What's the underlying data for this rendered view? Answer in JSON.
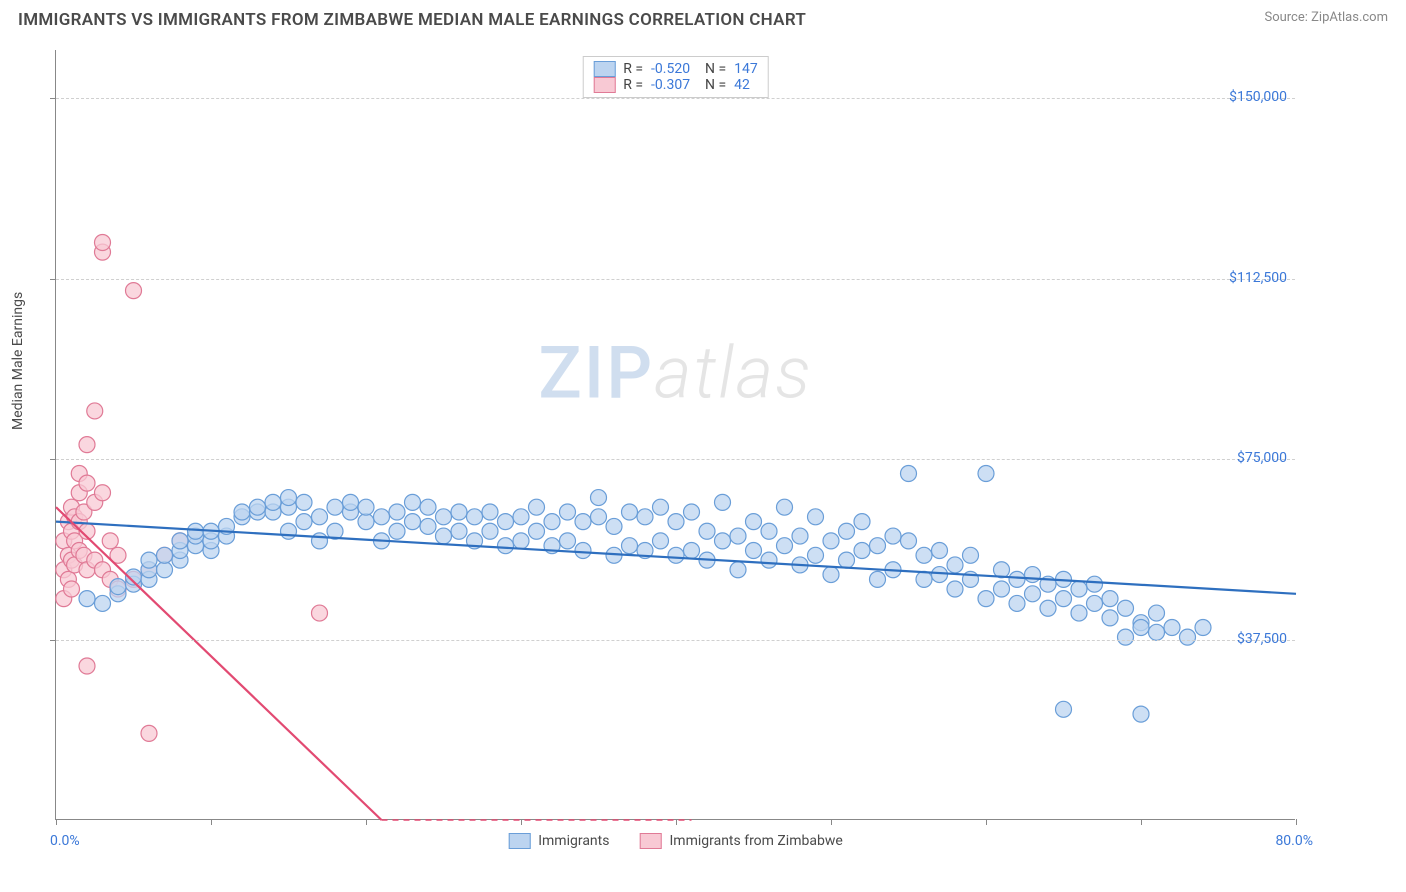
{
  "header": {
    "title": "IMMIGRANTS VS IMMIGRANTS FROM ZIMBABWE MEDIAN MALE EARNINGS CORRELATION CHART",
    "source": "Source: ZipAtlas.com"
  },
  "chart": {
    "type": "scatter",
    "y_label": "Median Male Earnings",
    "x_min": 0.0,
    "x_max": 80.0,
    "y_min": 0,
    "y_max": 160000,
    "x_ticks_pct": [
      0,
      10,
      20,
      30,
      40,
      50,
      60,
      70,
      80
    ],
    "x_tick_labels": {
      "left": "0.0%",
      "right": "80.0%"
    },
    "y_ticks": [
      {
        "v": 37500,
        "label": "$37,500"
      },
      {
        "v": 75000,
        "label": "$75,000"
      },
      {
        "v": 112500,
        "label": "$112,500"
      },
      {
        "v": 150000,
        "label": "$150,000"
      }
    ],
    "grid_color": "#d0d0d0",
    "background": "#ffffff",
    "axis_color": "#888888",
    "label_color": "#3b78d8",
    "marker_radius": 8,
    "marker_stroke_width": 1.2,
    "series": [
      {
        "id": "immigrants",
        "name": "Immigrants",
        "fill": "#bcd4f0",
        "stroke": "#6a9ed8",
        "trend_color": "#2e6fbf",
        "R": "-0.520",
        "N": "147",
        "trend": {
          "x1": 0,
          "y1": 62000,
          "x2": 80,
          "y2": 47000,
          "extrapolate_from": 80
        },
        "points": [
          [
            2,
            46000
          ],
          [
            3,
            45000
          ],
          [
            4,
            47000
          ],
          [
            4,
            48500
          ],
          [
            5,
            49000
          ],
          [
            5,
            50500
          ],
          [
            6,
            50000
          ],
          [
            6,
            52000
          ],
          [
            6,
            54000
          ],
          [
            7,
            52000
          ],
          [
            7,
            55000
          ],
          [
            8,
            54000
          ],
          [
            8,
            56000
          ],
          [
            8,
            58000
          ],
          [
            9,
            57000
          ],
          [
            9,
            59000
          ],
          [
            9,
            60000
          ],
          [
            10,
            56000
          ],
          [
            10,
            58000
          ],
          [
            10,
            60000
          ],
          [
            11,
            59000
          ],
          [
            11,
            61000
          ],
          [
            12,
            63000
          ],
          [
            12,
            64000
          ],
          [
            13,
            64000
          ],
          [
            13,
            65000
          ],
          [
            14,
            64000
          ],
          [
            14,
            66000
          ],
          [
            15,
            60000
          ],
          [
            15,
            65000
          ],
          [
            15,
            67000
          ],
          [
            16,
            62000
          ],
          [
            16,
            66000
          ],
          [
            17,
            58000
          ],
          [
            17,
            63000
          ],
          [
            18,
            60000
          ],
          [
            18,
            65000
          ],
          [
            19,
            64000
          ],
          [
            19,
            66000
          ],
          [
            20,
            62000
          ],
          [
            20,
            65000
          ],
          [
            21,
            58000
          ],
          [
            21,
            63000
          ],
          [
            22,
            60000
          ],
          [
            22,
            64000
          ],
          [
            23,
            62000
          ],
          [
            23,
            66000
          ],
          [
            24,
            61000
          ],
          [
            24,
            65000
          ],
          [
            25,
            59000
          ],
          [
            25,
            63000
          ],
          [
            26,
            60000
          ],
          [
            26,
            64000
          ],
          [
            27,
            58000
          ],
          [
            27,
            63000
          ],
          [
            28,
            60000
          ],
          [
            28,
            64000
          ],
          [
            29,
            57000
          ],
          [
            29,
            62000
          ],
          [
            30,
            58000
          ],
          [
            30,
            63000
          ],
          [
            31,
            60000
          ],
          [
            31,
            65000
          ],
          [
            32,
            57000
          ],
          [
            32,
            62000
          ],
          [
            33,
            58000
          ],
          [
            33,
            64000
          ],
          [
            34,
            56000
          ],
          [
            34,
            62000
          ],
          [
            35,
            63000
          ],
          [
            35,
            67000
          ],
          [
            36,
            55000
          ],
          [
            36,
            61000
          ],
          [
            37,
            57000
          ],
          [
            37,
            64000
          ],
          [
            38,
            56000
          ],
          [
            38,
            63000
          ],
          [
            39,
            58000
          ],
          [
            39,
            65000
          ],
          [
            40,
            55000
          ],
          [
            40,
            62000
          ],
          [
            41,
            56000
          ],
          [
            41,
            64000
          ],
          [
            42,
            54000
          ],
          [
            42,
            60000
          ],
          [
            43,
            58000
          ],
          [
            43,
            66000
          ],
          [
            44,
            52000
          ],
          [
            44,
            59000
          ],
          [
            45,
            56000
          ],
          [
            45,
            62000
          ],
          [
            46,
            54000
          ],
          [
            46,
            60000
          ],
          [
            47,
            57000
          ],
          [
            47,
            65000
          ],
          [
            48,
            53000
          ],
          [
            48,
            59000
          ],
          [
            49,
            55000
          ],
          [
            49,
            63000
          ],
          [
            50,
            51000
          ],
          [
            50,
            58000
          ],
          [
            51,
            54000
          ],
          [
            51,
            60000
          ],
          [
            52,
            56000
          ],
          [
            52,
            62000
          ],
          [
            53,
            50000
          ],
          [
            53,
            57000
          ],
          [
            54,
            52000
          ],
          [
            54,
            59000
          ],
          [
            55,
            58000
          ],
          [
            55,
            72000
          ],
          [
            56,
            50000
          ],
          [
            56,
            55000
          ],
          [
            57,
            51000
          ],
          [
            57,
            56000
          ],
          [
            58,
            48000
          ],
          [
            58,
            53000
          ],
          [
            59,
            50000
          ],
          [
            59,
            55000
          ],
          [
            60,
            46000
          ],
          [
            60,
            72000
          ],
          [
            61,
            48000
          ],
          [
            61,
            52000
          ],
          [
            62,
            45000
          ],
          [
            62,
            50000
          ],
          [
            63,
            47000
          ],
          [
            63,
            51000
          ],
          [
            64,
            44000
          ],
          [
            64,
            49000
          ],
          [
            65,
            46000
          ],
          [
            65,
            50000
          ],
          [
            66,
            43000
          ],
          [
            66,
            48000
          ],
          [
            67,
            45000
          ],
          [
            67,
            49000
          ],
          [
            68,
            42000
          ],
          [
            68,
            46000
          ],
          [
            69,
            44000
          ],
          [
            69,
            38000
          ],
          [
            70,
            41000
          ],
          [
            70,
            40000
          ],
          [
            71,
            43000
          ],
          [
            71,
            39000
          ],
          [
            72,
            40000
          ],
          [
            73,
            38000
          ],
          [
            74,
            40000
          ],
          [
            65,
            23000
          ],
          [
            70,
            22000
          ]
        ]
      },
      {
        "id": "zimbabwe",
        "name": "Immigrants from Zimbabwe",
        "fill": "#f8c9d4",
        "stroke": "#e07a96",
        "trend_color": "#e24a72",
        "R": "-0.307",
        "N": "42",
        "trend": {
          "x1": 0,
          "y1": 65000,
          "x2": 21,
          "y2": 0,
          "extrapolate_from": 21
        },
        "points": [
          [
            0.5,
            46000
          ],
          [
            0.5,
            52000
          ],
          [
            0.5,
            58000
          ],
          [
            0.8,
            50000
          ],
          [
            0.8,
            55000
          ],
          [
            0.8,
            62000
          ],
          [
            1,
            48000
          ],
          [
            1,
            54000
          ],
          [
            1,
            60000
          ],
          [
            1,
            65000
          ],
          [
            1.2,
            53000
          ],
          [
            1.2,
            58000
          ],
          [
            1.2,
            63000
          ],
          [
            1.5,
            56000
          ],
          [
            1.5,
            62000
          ],
          [
            1.5,
            68000
          ],
          [
            1.5,
            72000
          ],
          [
            1.8,
            55000
          ],
          [
            1.8,
            64000
          ],
          [
            2,
            52000
          ],
          [
            2,
            60000
          ],
          [
            2,
            70000
          ],
          [
            2,
            78000
          ],
          [
            2.5,
            54000
          ],
          [
            2.5,
            66000
          ],
          [
            2.5,
            85000
          ],
          [
            3,
            52000
          ],
          [
            3,
            68000
          ],
          [
            3,
            118000
          ],
          [
            3,
            120000
          ],
          [
            3.5,
            50000
          ],
          [
            3.5,
            58000
          ],
          [
            4,
            48000
          ],
          [
            4,
            55000
          ],
          [
            5,
            50000
          ],
          [
            5,
            110000
          ],
          [
            6,
            52000
          ],
          [
            6,
            18000
          ],
          [
            2,
            32000
          ],
          [
            7,
            55000
          ],
          [
            8,
            58000
          ],
          [
            17,
            43000
          ]
        ]
      }
    ]
  },
  "watermark": {
    "zip": "ZIP",
    "atlas": "atlas"
  }
}
